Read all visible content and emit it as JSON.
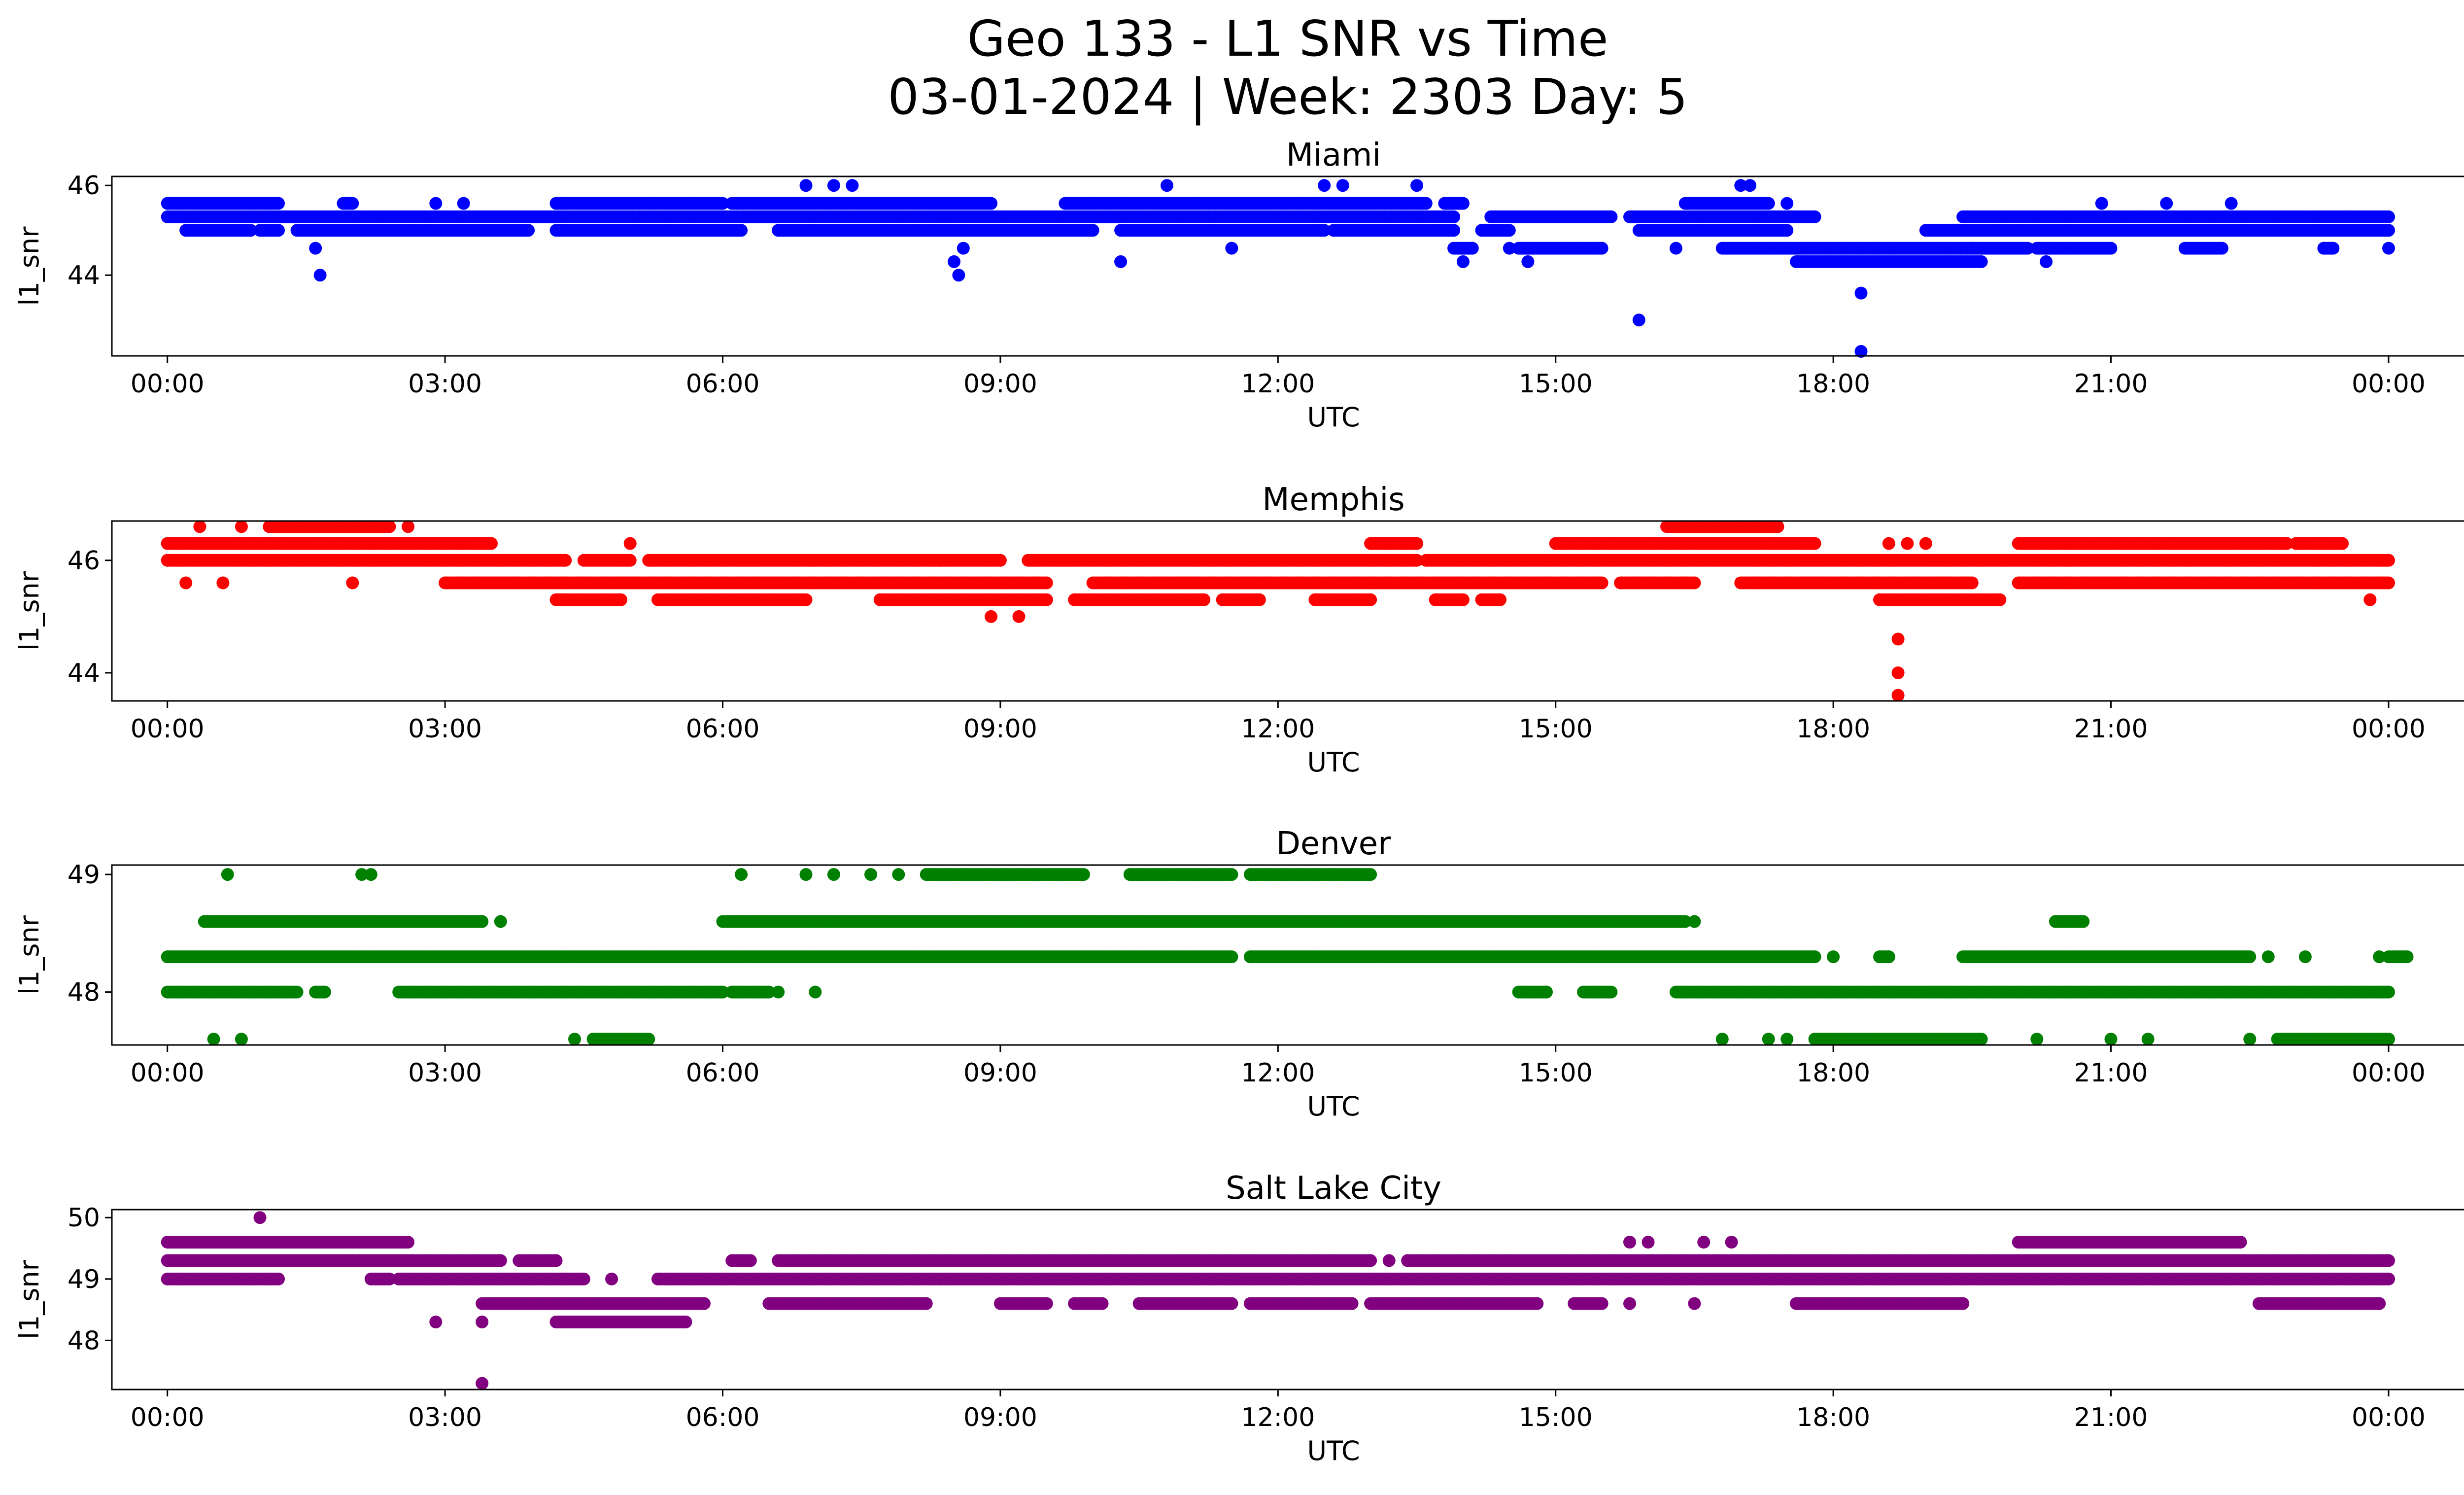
{
  "title_line1": "Geo 133 - L1 SNR vs Time",
  "title_line2": "03-01-2024 | Week: 2303 Day: 5",
  "x_ticks": [
    "00:00",
    "03:00",
    "06:00",
    "09:00",
    "12:00",
    "15:00",
    "18:00",
    "21:00",
    "00:00"
  ],
  "chart_data": [
    {
      "type": "scatter",
      "title": "Miami",
      "xlabel": "UTC",
      "ylabel": "l1_snr",
      "color": "#0000ff",
      "xlim": [
        -0.6,
        25.8
      ],
      "ylim": [
        42.2,
        46.2
      ],
      "yticks": [
        44,
        46
      ],
      "bands": [
        {
          "y": 45.0,
          "segments": [
            [
              0.2,
              0.9
            ],
            [
              1.0,
              1.2
            ],
            [
              1.4,
              3.9
            ],
            [
              4.2,
              6.2
            ],
            [
              6.6,
              10.0
            ],
            [
              10.3,
              12.5
            ],
            [
              12.6,
              13.9
            ],
            [
              14.2,
              14.5
            ],
            [
              15.9,
              17.5
            ],
            [
              19.0,
              24.0
            ]
          ]
        },
        {
          "y": 45.3,
          "segments": [
            [
              0.0,
              13.9
            ],
            [
              14.3,
              15.6
            ],
            [
              15.8,
              17.8
            ],
            [
              19.4,
              24.0
            ]
          ]
        },
        {
          "y": 45.6,
          "segments": [
            [
              0.0,
              1.2
            ],
            [
              1.9,
              2.0
            ],
            [
              4.2,
              6.0
            ],
            [
              6.1,
              8.9
            ],
            [
              9.7,
              13.6
            ],
            [
              13.8,
              14.0
            ],
            [
              16.4,
              17.3
            ]
          ]
        },
        {
          "y": 44.6,
          "segments": [
            [
              13.9,
              14.1
            ],
            [
              14.6,
              15.5
            ],
            [
              16.8,
              19.5
            ],
            [
              19.5,
              20.1
            ],
            [
              20.2,
              21.0
            ],
            [
              21.8,
              22.2
            ],
            [
              23.3,
              23.4
            ]
          ]
        },
        {
          "y": 44.3,
          "segments": [
            [
              17.6,
              19.6
            ]
          ]
        }
      ],
      "points": [
        [
          1.6,
          44.6
        ],
        [
          1.65,
          44.0
        ],
        [
          2.9,
          45.6
        ],
        [
          3.2,
          45.6
        ],
        [
          6.9,
          46.0
        ],
        [
          7.2,
          46.0
        ],
        [
          7.4,
          46.0
        ],
        [
          8.5,
          44.3
        ],
        [
          8.55,
          44.0
        ],
        [
          8.6,
          44.6
        ],
        [
          10.3,
          44.3
        ],
        [
          10.8,
          46.0
        ],
        [
          11.5,
          44.6
        ],
        [
          12.5,
          46.0
        ],
        [
          12.7,
          46.0
        ],
        [
          13.5,
          46.0
        ],
        [
          14.0,
          44.3
        ],
        [
          14.5,
          44.6
        ],
        [
          14.7,
          44.3
        ],
        [
          15.9,
          43.0
        ],
        [
          16.3,
          44.6
        ],
        [
          17.0,
          46.0
        ],
        [
          17.1,
          46.0
        ],
        [
          17.5,
          45.6
        ],
        [
          18.3,
          43.6
        ],
        [
          18.3,
          42.3
        ],
        [
          20.3,
          44.3
        ],
        [
          20.9,
          45.6
        ],
        [
          21.6,
          45.6
        ],
        [
          22.3,
          45.6
        ],
        [
          23.3,
          44.6
        ],
        [
          24.0,
          44.6
        ]
      ]
    },
    {
      "type": "scatter",
      "title": "Memphis",
      "xlabel": "UTC",
      "ylabel": "l1_snr",
      "color": "#ff0000",
      "xlim": [
        -0.6,
        25.8
      ],
      "ylim": [
        43.5,
        46.7
      ],
      "yticks": [
        44,
        46
      ],
      "bands": [
        {
          "y": 46.3,
          "segments": [
            [
              0.0,
              3.5
            ],
            [
              13.0,
              13.5
            ],
            [
              15.0,
              17.8
            ],
            [
              20.0,
              22.9
            ],
            [
              23.0,
              23.5
            ]
          ]
        },
        {
          "y": 46.0,
          "segments": [
            [
              0.0,
              4.3
            ],
            [
              4.5,
              5.0
            ],
            [
              5.2,
              9.0
            ],
            [
              9.3,
              13.5
            ],
            [
              13.6,
              24.0
            ]
          ]
        },
        {
          "y": 45.6,
          "segments": [
            [
              3.0,
              9.5
            ],
            [
              10.0,
              15.5
            ],
            [
              15.7,
              16.5
            ],
            [
              17.0,
              19.5
            ],
            [
              20.0,
              24.0
            ]
          ]
        },
        {
          "y": 45.3,
          "segments": [
            [
              4.2,
              4.9
            ],
            [
              5.3,
              6.9
            ],
            [
              7.7,
              9.5
            ],
            [
              9.8,
              11.2
            ],
            [
              11.4,
              11.8
            ],
            [
              12.4,
              13.0
            ],
            [
              13.7,
              14.0
            ],
            [
              14.2,
              14.4
            ],
            [
              18.5,
              19.8
            ]
          ]
        },
        {
          "y": 46.6,
          "segments": [
            [
              1.1,
              2.4
            ],
            [
              16.2,
              17.4
            ]
          ]
        }
      ],
      "points": [
        [
          0.2,
          45.6
        ],
        [
          0.35,
          46.6
        ],
        [
          0.6,
          45.6
        ],
        [
          0.8,
          46.6
        ],
        [
          2.0,
          45.6
        ],
        [
          2.6,
          46.6
        ],
        [
          5.0,
          46.3
        ],
        [
          8.9,
          45.0
        ],
        [
          9.2,
          45.0
        ],
        [
          18.7,
          44.6
        ],
        [
          18.7,
          44.0
        ],
        [
          18.7,
          43.6
        ],
        [
          18.6,
          46.3
        ],
        [
          18.8,
          46.3
        ],
        [
          19.0,
          46.3
        ],
        [
          23.8,
          45.3
        ],
        [
          23.3,
          46.3
        ]
      ]
    },
    {
      "type": "scatter",
      "title": "Denver",
      "xlabel": "UTC",
      "ylabel": "l1_snr",
      "color": "#008000",
      "xlim": [
        -0.6,
        25.8
      ],
      "ylim": [
        47.55,
        49.08
      ],
      "yticks": [
        48,
        49
      ],
      "bands": [
        {
          "y": 48.3,
          "segments": [
            [
              0.0,
              11.5
            ],
            [
              11.7,
              17.8
            ],
            [
              18.5,
              18.6
            ],
            [
              19.4,
              22.5
            ],
            [
              24.0,
              24.2
            ]
          ]
        },
        {
          "y": 48.0,
          "segments": [
            [
              0.0,
              1.4
            ],
            [
              1.6,
              1.7
            ],
            [
              2.5,
              6.0
            ],
            [
              6.1,
              6.5
            ],
            [
              14.6,
              14.9
            ],
            [
              15.3,
              15.6
            ],
            [
              16.3,
              24.0
            ]
          ]
        },
        {
          "y": 48.6,
          "segments": [
            [
              0.4,
              3.4
            ],
            [
              6.0,
              16.4
            ],
            [
              20.4,
              20.7
            ]
          ]
        },
        {
          "y": 47.6,
          "segments": [
            [
              4.6,
              5.2
            ],
            [
              17.8,
              19.6
            ],
            [
              22.8,
              24.0
            ]
          ]
        },
        {
          "y": 49.0,
          "segments": [
            [
              8.2,
              9.9
            ],
            [
              10.4,
              11.5
            ],
            [
              11.7,
              13.0
            ]
          ]
        }
      ],
      "points": [
        [
          0.5,
          47.6
        ],
        [
          0.65,
          49.0
        ],
        [
          0.8,
          47.6
        ],
        [
          2.1,
          49.0
        ],
        [
          2.2,
          49.0
        ],
        [
          3.6,
          48.6
        ],
        [
          4.4,
          47.6
        ],
        [
          6.2,
          49.0
        ],
        [
          6.6,
          48.0
        ],
        [
          7.0,
          48.0
        ],
        [
          6.9,
          49.0
        ],
        [
          7.2,
          49.0
        ],
        [
          7.6,
          49.0
        ],
        [
          7.9,
          49.0
        ],
        [
          14.9,
          48.0
        ],
        [
          16.5,
          48.6
        ],
        [
          16.8,
          47.6
        ],
        [
          17.3,
          47.6
        ],
        [
          17.5,
          47.6
        ],
        [
          18.0,
          48.3
        ],
        [
          18.6,
          48.3
        ],
        [
          20.2,
          47.6
        ],
        [
          21.0,
          47.6
        ],
        [
          21.4,
          47.6
        ],
        [
          22.5,
          47.6
        ],
        [
          22.7,
          48.3
        ],
        [
          23.1,
          48.3
        ],
        [
          23.9,
          48.3
        ]
      ]
    },
    {
      "type": "scatter",
      "title": "Salt Lake City",
      "xlabel": "UTC",
      "ylabel": "l1_snr",
      "color": "#800080",
      "xlim": [
        -0.6,
        25.8
      ],
      "ylim": [
        47.2,
        50.13
      ],
      "yticks": [
        48,
        49,
        50
      ],
      "bands": [
        {
          "y": 49.3,
          "segments": [
            [
              0.0,
              3.6
            ],
            [
              3.8,
              4.2
            ],
            [
              6.1,
              6.3
            ],
            [
              6.6,
              13.0
            ],
            [
              13.4,
              24.0
            ]
          ]
        },
        {
          "y": 49.0,
          "segments": [
            [
              0.0,
              1.2
            ],
            [
              2.2,
              2.4
            ],
            [
              2.5,
              4.5
            ],
            [
              5.3,
              24.0
            ]
          ]
        },
        {
          "y": 49.6,
          "segments": [
            [
              0.0,
              2.6
            ],
            [
              20.0,
              22.4
            ]
          ]
        },
        {
          "y": 48.6,
          "segments": [
            [
              3.4,
              5.8
            ],
            [
              6.5,
              8.2
            ],
            [
              9.0,
              9.5
            ],
            [
              9.8,
              10.1
            ],
            [
              10.5,
              11.5
            ],
            [
              11.7,
              12.8
            ],
            [
              13.0,
              14.8
            ],
            [
              15.2,
              15.5
            ],
            [
              17.6,
              19.4
            ],
            [
              22.6,
              23.9
            ]
          ]
        },
        {
          "y": 48.3,
          "segments": [
            [
              4.2,
              5.6
            ]
          ]
        }
      ],
      "points": [
        [
          1.0,
          50.0
        ],
        [
          2.9,
          48.3
        ],
        [
          3.4,
          48.3
        ],
        [
          3.4,
          47.3
        ],
        [
          4.8,
          49.0
        ],
        [
          15.8,
          49.6
        ],
        [
          15.8,
          48.6
        ],
        [
          16.0,
          49.6
        ],
        [
          16.6,
          49.6
        ],
        [
          16.5,
          48.6
        ],
        [
          16.9,
          49.6
        ],
        [
          13.2,
          49.3
        ],
        [
          23.5,
          49.3
        ]
      ]
    }
  ]
}
